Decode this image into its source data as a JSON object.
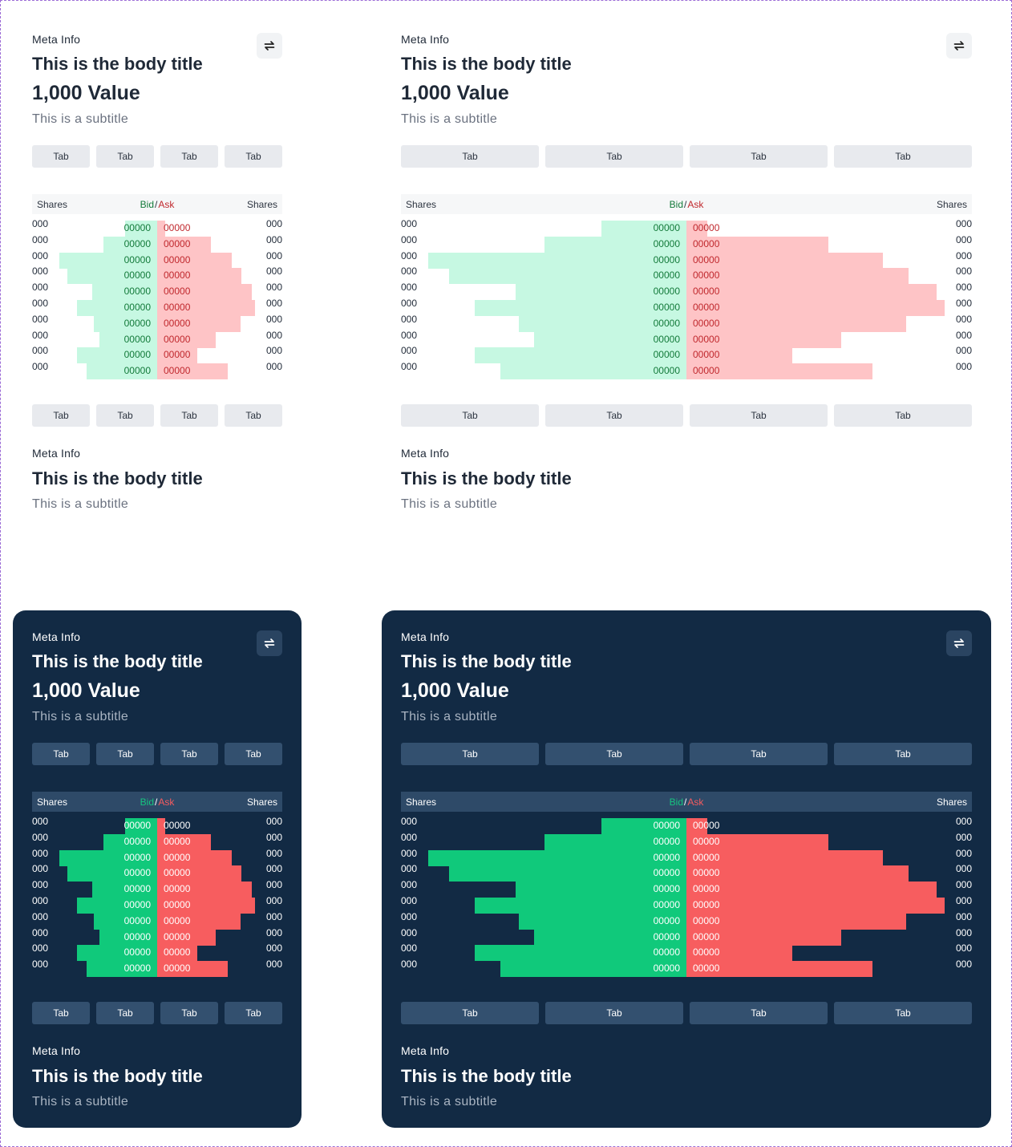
{
  "cards": [
    {
      "id": "c1",
      "theme": "light",
      "meta": "Meta Info",
      "title": "This is the body title",
      "value": "1,000 Value",
      "subtitle": "This is a subtitle",
      "tabs": [
        "Tab",
        "Tab",
        "Tab",
        "Tab"
      ],
      "bottom_tabs": [
        "Tab",
        "Tab",
        "Tab",
        "Tab"
      ],
      "header": {
        "shares_left": "Shares",
        "bid": "Bid",
        "slash": "/",
        "ask": "Ask",
        "shares_right": "Shares"
      },
      "footer": {
        "meta": "Meta Info",
        "title": "This is the body title",
        "subtitle": "This is a subtitle"
      }
    },
    {
      "id": "c2",
      "theme": "light",
      "meta": "Meta Info",
      "title": "This is the body title",
      "value": "1,000 Value",
      "subtitle": "This is a subtitle",
      "tabs": [
        "Tab",
        "Tab",
        "Tab",
        "Tab"
      ],
      "bottom_tabs": [
        "Tab",
        "Tab",
        "Tab",
        "Tab"
      ],
      "header": {
        "shares_left": "Shares",
        "bid": "Bid",
        "slash": "/",
        "ask": "Ask",
        "shares_right": "Shares"
      },
      "footer": {
        "meta": "Meta Info",
        "title": "This is the body title",
        "subtitle": "This is a subtitle"
      }
    },
    {
      "id": "c3",
      "theme": "dark",
      "meta": "Meta Info",
      "title": "This is the body title",
      "value": "1,000 Value",
      "subtitle": "This is a subtitle",
      "tabs": [
        "Tab",
        "Tab",
        "Tab",
        "Tab"
      ],
      "bottom_tabs": [
        "Tab",
        "Tab",
        "Tab",
        "Tab"
      ],
      "header": {
        "shares_left": "Shares",
        "bid": "Bid",
        "slash": "/",
        "ask": "Ask",
        "shares_right": "Shares"
      },
      "footer": {
        "meta": "Meta Info",
        "title": "This is the body title",
        "subtitle": "This is a subtitle"
      }
    },
    {
      "id": "c4",
      "theme": "dark",
      "meta": "Meta Info",
      "title": "This is the body title",
      "value": "1,000 Value",
      "subtitle": "This is a subtitle",
      "tabs": [
        "Tab",
        "Tab",
        "Tab",
        "Tab"
      ],
      "bottom_tabs": [
        "Tab",
        "Tab",
        "Tab",
        "Tab"
      ],
      "header": {
        "shares_left": "Shares",
        "bid": "Bid",
        "slash": "/",
        "ask": "Ask",
        "shares_right": "Shares"
      },
      "footer": {
        "meta": "Meta Info",
        "title": "This is the body title",
        "subtitle": "This is a subtitle"
      }
    }
  ],
  "order_book": {
    "rows": [
      {
        "shares_left": "000",
        "bid": "00000",
        "ask": "00000",
        "shares_right": "000",
        "bid_depth": 0.33,
        "ask_depth": 0.08
      },
      {
        "shares_left": "000",
        "bid": "00000",
        "ask": "00000",
        "shares_right": "000",
        "bid_depth": 0.55,
        "ask_depth": 0.55
      },
      {
        "shares_left": "000",
        "bid": "00000",
        "ask": "00000",
        "shares_right": "000",
        "bid_depth": 1.0,
        "ask_depth": 0.76
      },
      {
        "shares_left": "000",
        "bid": "00000",
        "ask": "00000",
        "shares_right": "000",
        "bid_depth": 0.92,
        "ask_depth": 0.86
      },
      {
        "shares_left": "000",
        "bid": "00000",
        "ask": "00000",
        "shares_right": "000",
        "bid_depth": 0.66,
        "ask_depth": 0.97
      },
      {
        "shares_left": "000",
        "bid": "00000",
        "ask": "00000",
        "shares_right": "000",
        "bid_depth": 0.82,
        "ask_depth": 1.0
      },
      {
        "shares_left": "000",
        "bid": "00000",
        "ask": "00000",
        "shares_right": "000",
        "bid_depth": 0.65,
        "ask_depth": 0.85
      },
      {
        "shares_left": "000",
        "bid": "00000",
        "ask": "00000",
        "shares_right": "000",
        "bid_depth": 0.59,
        "ask_depth": 0.6
      },
      {
        "shares_left": "000",
        "bid": "00000",
        "ask": "00000",
        "shares_right": "000",
        "bid_depth": 0.82,
        "ask_depth": 0.41
      },
      {
        "shares_left": "000",
        "bid": "00000",
        "ask": "00000",
        "shares_right": "000",
        "bid_depth": 0.72,
        "ask_depth": 0.72
      }
    ]
  },
  "colors": {
    "light_bid": "#c6f8e2",
    "light_ask": "#fec4c6",
    "dark_bid": "#10c97b",
    "dark_ask": "#f75d5f",
    "dark_card": "#122a44"
  },
  "icons": {
    "swap": "swap-arrows-icon"
  }
}
